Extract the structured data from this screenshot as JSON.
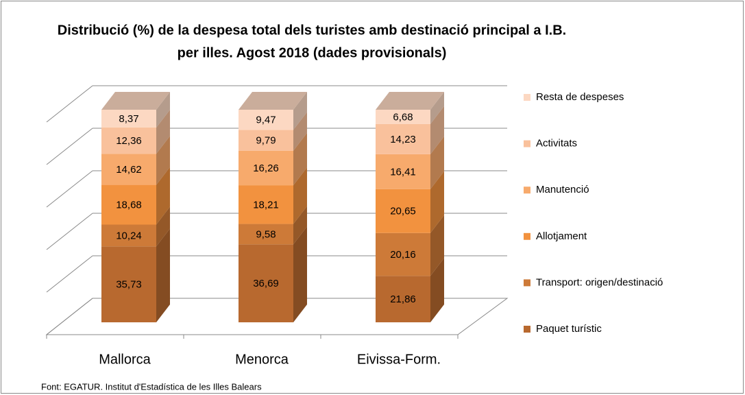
{
  "chart_data": {
    "type": "stacked_bar_3d",
    "title": [
      "Distribució (%) de la despesa total dels turistes amb destinació principal a I.B.",
      "per illes. Agost 2018 (dades provisionals)"
    ],
    "source": "Font: EGATUR.  Institut d'Estadística de les Illes Balears",
    "categories": [
      "Mallorca",
      "Menorca",
      "Eivissa-Form."
    ],
    "series": [
      {
        "name": "Paquet turístic",
        "color": "#b8692f",
        "values": [
          35.73,
          36.69,
          21.86
        ],
        "value_labels": [
          "35,73",
          "36,69",
          "21,86"
        ]
      },
      {
        "name": "Transport: origen/destinació",
        "color": "#cd7a38",
        "values": [
          10.24,
          9.58,
          20.16
        ],
        "value_labels": [
          "10,24",
          "9,58",
          "20,16"
        ]
      },
      {
        "name": "Allotjament",
        "color": "#f2923f",
        "values": [
          18.68,
          18.21,
          20.65
        ],
        "value_labels": [
          "18,68",
          "18,21",
          "20,65"
        ]
      },
      {
        "name": "Manutenció",
        "color": "#f7aa6c",
        "values": [
          14.62,
          16.26,
          16.41
        ],
        "value_labels": [
          "14,62",
          "16,26",
          "16,41"
        ]
      },
      {
        "name": "Activitats",
        "color": "#f9c19c",
        "values": [
          12.36,
          9.79,
          14.23
        ],
        "value_labels": [
          "12,36",
          "9,79",
          "14,23"
        ]
      },
      {
        "name": "Resta de despeses",
        "color": "#fcd8c2",
        "values": [
          8.37,
          9.47,
          6.68
        ],
        "value_labels": [
          "8,37",
          "9,47",
          "6,68"
        ]
      }
    ],
    "ylim": [
      0,
      100
    ],
    "yticks": [
      0,
      20,
      40,
      60,
      80,
      100
    ],
    "grid": true,
    "legend": "right"
  }
}
